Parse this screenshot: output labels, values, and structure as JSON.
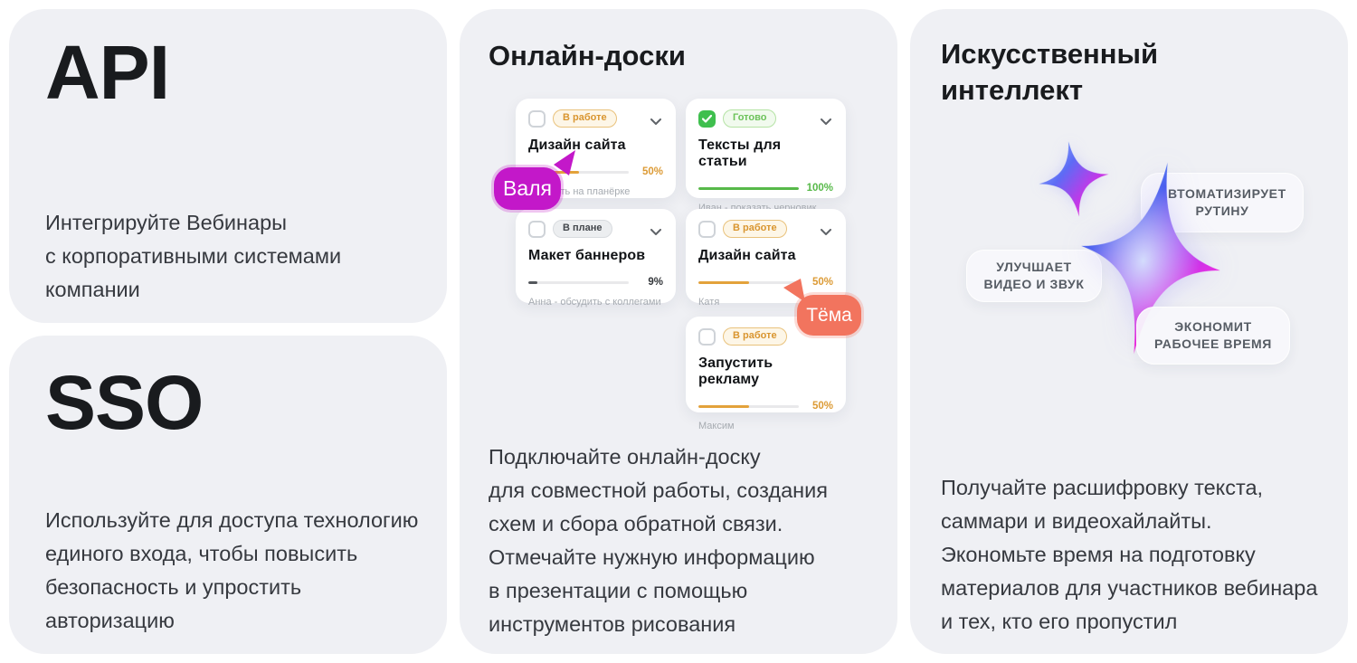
{
  "api_card": {
    "title": "API",
    "description": "Интегрируйте Вебинары\nс корпоративными системами\nкомпании"
  },
  "sso_card": {
    "title": "SSO",
    "description": "Используйте для доступа технологию\nединого входа, чтобы повысить\nбезопасность и упростить\nавторизацию"
  },
  "board": {
    "title": "Онлайн-доски",
    "description": "Подключайте онлайн-доску\nдля совместной работы, создания\nсхем и сбора обратной связи.\nОтмечайте нужную информацию\nв презентации с помощью\nинструментов рисования",
    "tasks": [
      {
        "status": "В работе",
        "checked": false,
        "title": "Дизайн сайта",
        "progress": 50,
        "percent_label": "50%",
        "note": "обсудить на планёрке"
      },
      {
        "status": "Готово",
        "checked": true,
        "title": "Тексты для статьи",
        "progress": 100,
        "percent_label": "100%",
        "note": "Иван - показать черновик"
      },
      {
        "status": "В плане",
        "checked": false,
        "title": "Макет баннеров",
        "progress": 9,
        "percent_label": "9%",
        "note": "Анна - обсудить с коллегами"
      },
      {
        "status": "В работе",
        "checked": false,
        "title": "Дизайн сайта",
        "progress": 50,
        "percent_label": "50%",
        "note": "Катя"
      },
      {
        "status": "В работе",
        "checked": false,
        "title": "Запустить рекламу",
        "progress": 50,
        "percent_label": "50%",
        "note": "Максим"
      }
    ],
    "cursors": [
      {
        "name": "Валя",
        "color": "#c318c9"
      },
      {
        "name": "Тёма",
        "color": "#f2745e"
      }
    ]
  },
  "ai_card": {
    "title": "Искусственный\nинтеллект",
    "badges": [
      "АВТОМАТИЗИРУЕТ\nРУТИНУ",
      "УЛУЧШАЕТ\nВИДЕО И ЗВУК",
      "ЭКОНОМИТ\nРАБОЧЕЕ ВРЕМЯ"
    ],
    "description": "Получайте расшифровку текста,\nсаммари и видеохайлайты.\nЭкономьте время на подготовку\nматериалов для участников вебинара\nи тех, кто его пропустил"
  },
  "colors": {
    "panel_bg": "#eff0f4",
    "task_card_bg": "#ffffff",
    "status_orange": "#d9952f",
    "status_green": "#6cc25a",
    "progress_orange": "#e3a23b",
    "progress_green": "#57b949",
    "cursor_magenta": "#c318c9",
    "cursor_coral": "#f2745e"
  }
}
